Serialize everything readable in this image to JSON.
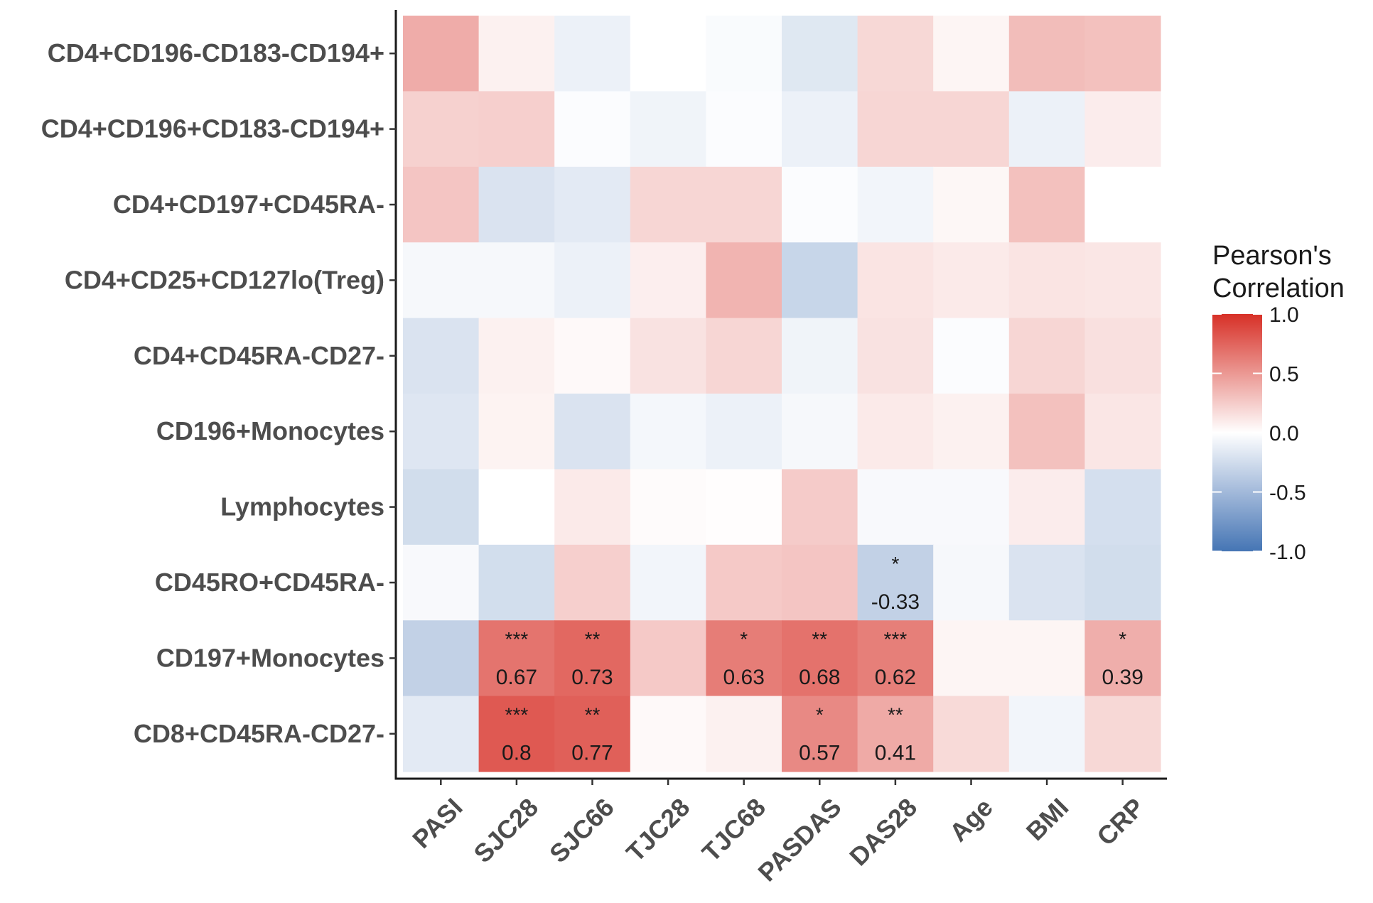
{
  "chart_data": {
    "type": "heatmap",
    "title": "",
    "xlabel": "",
    "ylabel": "",
    "columns": [
      "PASI",
      "SJC28",
      "SJC66",
      "TJC28",
      "TJC68",
      "PASDAS",
      "DAS28",
      "Age",
      "BMI",
      "CRP"
    ],
    "rows": [
      "CD4+CD196-CD183-CD194+",
      "CD4+CD196+CD183-CD194+",
      "CD4+CD197+CD45RA-",
      "CD4+CD25+CD127lo(Treg)",
      "CD4+CD45RA-CD27-",
      "CD196+Monocytes",
      "Lymphocytes",
      "CD45RO+CD45RA-",
      "CD197+Monocytes",
      "CD8+CD45RA-CD27-"
    ],
    "values": [
      [
        0.4,
        0.07,
        -0.1,
        0.0,
        -0.03,
        -0.17,
        0.19,
        0.05,
        0.32,
        0.3
      ],
      [
        0.22,
        0.23,
        -0.02,
        -0.08,
        -0.02,
        -0.1,
        0.2,
        0.2,
        -0.1,
        0.09
      ],
      [
        0.28,
        -0.2,
        -0.15,
        0.2,
        0.2,
        -0.02,
        -0.07,
        0.04,
        0.3,
        0.0
      ],
      [
        -0.05,
        -0.05,
        -0.1,
        0.08,
        0.36,
        -0.3,
        0.13,
        0.1,
        0.13,
        0.12
      ],
      [
        -0.2,
        0.07,
        0.03,
        0.14,
        0.2,
        -0.08,
        0.14,
        -0.02,
        0.2,
        0.15
      ],
      [
        -0.18,
        0.06,
        -0.2,
        -0.06,
        -0.1,
        -0.05,
        0.1,
        0.07,
        0.3,
        0.12
      ],
      [
        -0.25,
        0.0,
        0.1,
        0.02,
        0.01,
        0.25,
        -0.04,
        -0.04,
        0.09,
        -0.23
      ],
      [
        -0.04,
        -0.24,
        0.23,
        -0.07,
        0.26,
        0.28,
        -0.33,
        -0.05,
        -0.2,
        -0.25
      ],
      [
        -0.33,
        0.67,
        0.73,
        0.26,
        0.63,
        0.68,
        0.62,
        0.05,
        0.05,
        0.39
      ],
      [
        -0.15,
        0.8,
        0.77,
        0.03,
        0.07,
        0.57,
        0.41,
        0.18,
        -0.07,
        0.19
      ]
    ],
    "annotations": [
      {
        "row": 7,
        "col": 6,
        "sig": "*",
        "label": "-0.33"
      },
      {
        "row": 8,
        "col": 1,
        "sig": "***",
        "label": "0.67"
      },
      {
        "row": 8,
        "col": 2,
        "sig": "**",
        "label": "0.73"
      },
      {
        "row": 8,
        "col": 4,
        "sig": "*",
        "label": "0.63"
      },
      {
        "row": 8,
        "col": 5,
        "sig": "**",
        "label": "0.68"
      },
      {
        "row": 8,
        "col": 6,
        "sig": "***",
        "label": "0.62"
      },
      {
        "row": 8,
        "col": 9,
        "sig": "*",
        "label": "0.39"
      },
      {
        "row": 9,
        "col": 1,
        "sig": "***",
        "label": "0.8"
      },
      {
        "row": 9,
        "col": 2,
        "sig": "**",
        "label": "0.77"
      },
      {
        "row": 9,
        "col": 5,
        "sig": "*",
        "label": "0.57"
      },
      {
        "row": 9,
        "col": 6,
        "sig": "**",
        "label": "0.41"
      }
    ],
    "color_scale": {
      "low": "#4575b4",
      "mid": "#ffffff",
      "high": "#d73027",
      "range": [
        -1.0,
        1.0
      ]
    },
    "legend": {
      "title_line1": "Pearson's",
      "title_line2": "Correlation",
      "ticks": [
        {
          "value": 1.0,
          "label": "1.0"
        },
        {
          "value": 0.5,
          "label": "0.5"
        },
        {
          "value": 0.0,
          "label": "0.0"
        },
        {
          "value": -0.5,
          "label": "-0.5"
        },
        {
          "value": -1.0,
          "label": "-1.0"
        }
      ],
      "position": "right"
    }
  }
}
